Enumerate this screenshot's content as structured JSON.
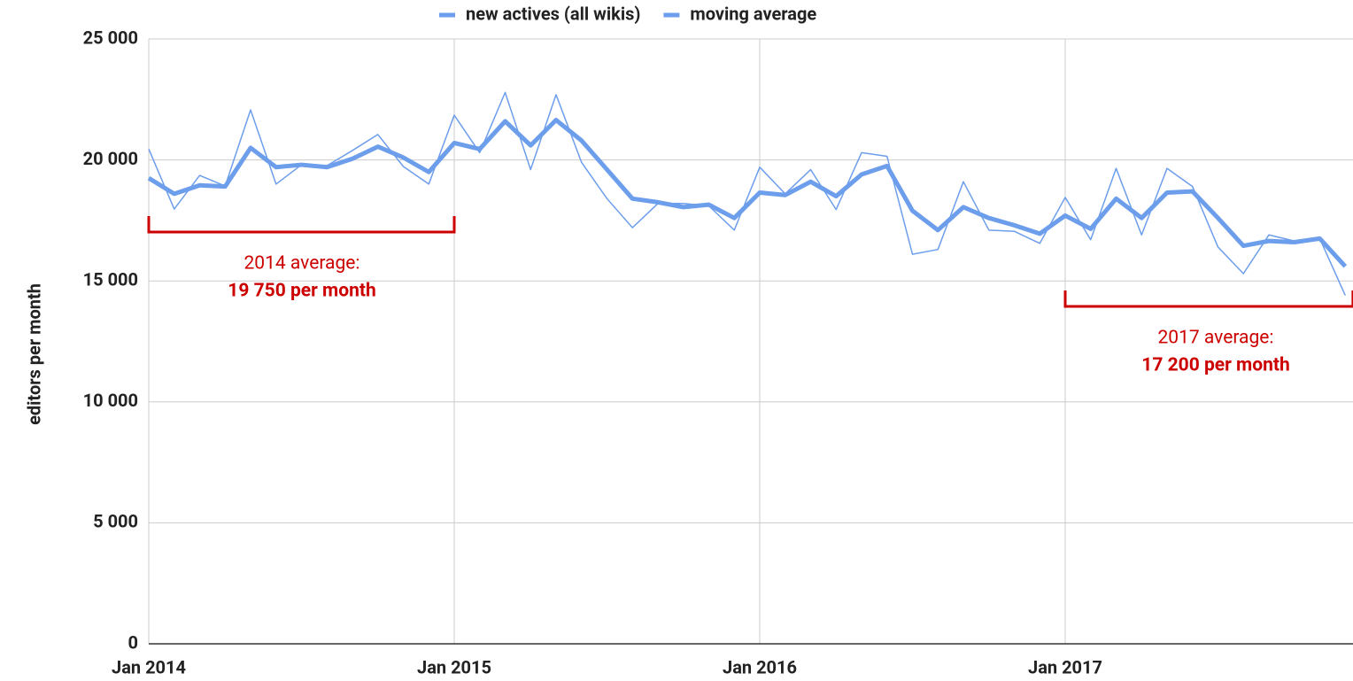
{
  "chart_data": {
    "type": "line",
    "categories": [
      "Jan 2014",
      null,
      null,
      null,
      null,
      null,
      null,
      null,
      null,
      null,
      null,
      null,
      "Jan 2015",
      null,
      null,
      null,
      null,
      null,
      null,
      null,
      null,
      null,
      null,
      null,
      "Jan 2016",
      null,
      null,
      null,
      null,
      null,
      null,
      null,
      null,
      null,
      null,
      null,
      "Jan 2017",
      null,
      null,
      null,
      null,
      null,
      null,
      null,
      null,
      null,
      null,
      null
    ],
    "series": [
      {
        "name": "new actives (all wikis)",
        "color": "#6d9eeb",
        "line_width": 1.5,
        "values": [
          20450,
          17970,
          19360,
          18920,
          22070,
          19000,
          19800,
          19760,
          20390,
          21050,
          19730,
          19000,
          21850,
          20300,
          22790,
          19600,
          22700,
          19900,
          18400,
          17200,
          18200,
          18200,
          18100,
          17100,
          19700,
          18600,
          19600,
          17950,
          20300,
          20150,
          16100,
          16300,
          19100,
          17100,
          17050,
          16550,
          18450,
          16700,
          19650,
          16900,
          19650,
          18900,
          16400,
          15300,
          16900,
          16650,
          16750,
          14400
        ]
      },
      {
        "name": "moving average",
        "color": "#6d9eeb",
        "line_width": 5,
        "values": [
          19250,
          18600,
          18950,
          18900,
          20500,
          19700,
          19800,
          19700,
          20050,
          20550,
          20100,
          19500,
          20700,
          20450,
          21600,
          20600,
          21650,
          20800,
          19600,
          18400,
          18250,
          18050,
          18150,
          17600,
          18650,
          18550,
          19100,
          18500,
          19400,
          19750,
          17900,
          17100,
          18050,
          17600,
          17300,
          16950,
          17700,
          17150,
          18400,
          17600,
          18650,
          18700,
          17600,
          16450,
          16650,
          16600,
          16750,
          15600
        ]
      }
    ],
    "y_label": "editors per month",
    "ylim": [
      0,
      25000
    ],
    "yticks": [
      0,
      {
        "value": 5000,
        "label": "5 000"
      },
      {
        "value": 10000,
        "label": "10 000"
      },
      {
        "value": 15000,
        "label": "15 000"
      },
      {
        "value": 20000,
        "label": "20 000"
      },
      {
        "value": 25000,
        "label": "25 000"
      }
    ],
    "grid": true,
    "legend": "top",
    "annotations": [
      {
        "text": "2014 average:",
        "emphasis": "19 750 per month",
        "color": "#cc0000"
      },
      {
        "text": "2017 average:",
        "emphasis": "17 200 per month",
        "color": "#cc0000"
      }
    ]
  }
}
